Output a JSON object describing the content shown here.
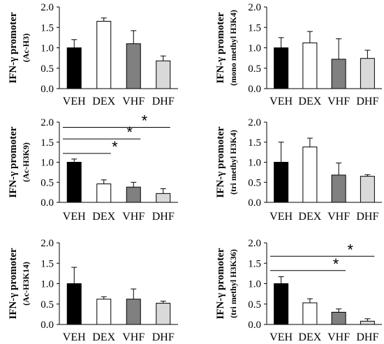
{
  "chart_data": [
    {
      "type": "bar",
      "ylabel": "IFN-γ promoter",
      "ylabel_sub": "(Ac-H3)",
      "categories": [
        "VEH",
        "DEX",
        "VHF",
        "DHF"
      ],
      "values": [
        1.0,
        1.65,
        1.1,
        0.68
      ],
      "errors": [
        0.2,
        0.08,
        0.32,
        0.12
      ],
      "colors": [
        "#000000",
        "#ffffff",
        "#808080",
        "#d9d9d9"
      ],
      "ylim": [
        0,
        2
      ],
      "yticks": [
        "0.0",
        "0.5",
        "1.0",
        "1.5",
        "2.0"
      ],
      "significance": []
    },
    {
      "type": "bar",
      "ylabel": "IFN-γ promoter",
      "ylabel_sub": "(mono methyl H3K4)",
      "categories": [
        "VEH",
        "DEX",
        "VHF",
        "DHF"
      ],
      "values": [
        1.0,
        1.12,
        0.72,
        0.74
      ],
      "errors": [
        0.25,
        0.28,
        0.5,
        0.2
      ],
      "colors": [
        "#000000",
        "#ffffff",
        "#808080",
        "#d9d9d9"
      ],
      "ylim": [
        0,
        2
      ],
      "yticks": [
        "0.0",
        "0.5",
        "1.0",
        "1.5",
        "2.0"
      ],
      "significance": []
    },
    {
      "type": "bar",
      "ylabel": "IFN-γ promoter",
      "ylabel_sub": "(Ac-H3K9)",
      "categories": [
        "VEH",
        "DEX",
        "VHF",
        "DHF"
      ],
      "values": [
        1.0,
        0.46,
        0.38,
        0.22
      ],
      "errors": [
        0.08,
        0.1,
        0.12,
        0.12
      ],
      "colors": [
        "#000000",
        "#ffffff",
        "#808080",
        "#d9d9d9"
      ],
      "ylim": [
        0,
        2
      ],
      "yticks": [
        "0.0",
        "0.5",
        "1.0",
        "1.5",
        "2.0"
      ],
      "significance": [
        {
          "from": "VEH",
          "to": "DHF",
          "y": 1.87,
          "label": "*"
        },
        {
          "from": "VEH",
          "to": "VHF",
          "y": 1.58,
          "label": "*"
        },
        {
          "from": "VEH",
          "to": "DEX",
          "y": 1.22,
          "label": "*"
        }
      ]
    },
    {
      "type": "bar",
      "ylabel": "IFN-γ promoter",
      "ylabel_sub": "(tri methyl H3K4)",
      "categories": [
        "VEH",
        "DEX",
        "VHF",
        "DHF"
      ],
      "values": [
        1.0,
        1.38,
        0.68,
        0.65
      ],
      "errors": [
        0.5,
        0.22,
        0.3,
        0.04
      ],
      "colors": [
        "#000000",
        "#ffffff",
        "#808080",
        "#d9d9d9"
      ],
      "ylim": [
        0,
        2
      ],
      "yticks": [
        "0.0",
        "0.5",
        "1.0",
        "1.5",
        "2.0"
      ],
      "significance": []
    },
    {
      "type": "bar",
      "ylabel": "IFN-γ promoter",
      "ylabel_sub": "(Ac-H3K14)",
      "categories": [
        "VEH",
        "DEX",
        "VHF",
        "DHF"
      ],
      "values": [
        1.0,
        0.62,
        0.62,
        0.52
      ],
      "errors": [
        0.4,
        0.06,
        0.25,
        0.05
      ],
      "colors": [
        "#000000",
        "#ffffff",
        "#808080",
        "#d9d9d9"
      ],
      "ylim": [
        0,
        2
      ],
      "yticks": [
        "0.0",
        "0.5",
        "1.0",
        "1.5",
        "2.0"
      ],
      "significance": []
    },
    {
      "type": "bar",
      "ylabel": "IFN-γ promoter",
      "ylabel_sub": "(tri methyl H3K36)",
      "categories": [
        "VEH",
        "DEX",
        "VHF",
        "DHF"
      ],
      "values": [
        1.0,
        0.53,
        0.3,
        0.08
      ],
      "errors": [
        0.17,
        0.1,
        0.08,
        0.06
      ],
      "colors": [
        "#000000",
        "#ffffff",
        "#808080",
        "#d9d9d9"
      ],
      "ylim": [
        0,
        2
      ],
      "yticks": [
        "0.0",
        "0.5",
        "1.0",
        "1.5",
        "2.0"
      ],
      "significance": [
        {
          "from": "VEH",
          "to": "DHF",
          "y": 1.67,
          "label": "*"
        },
        {
          "from": "VEH",
          "to": "VHF",
          "y": 1.32,
          "label": "*"
        }
      ]
    }
  ]
}
